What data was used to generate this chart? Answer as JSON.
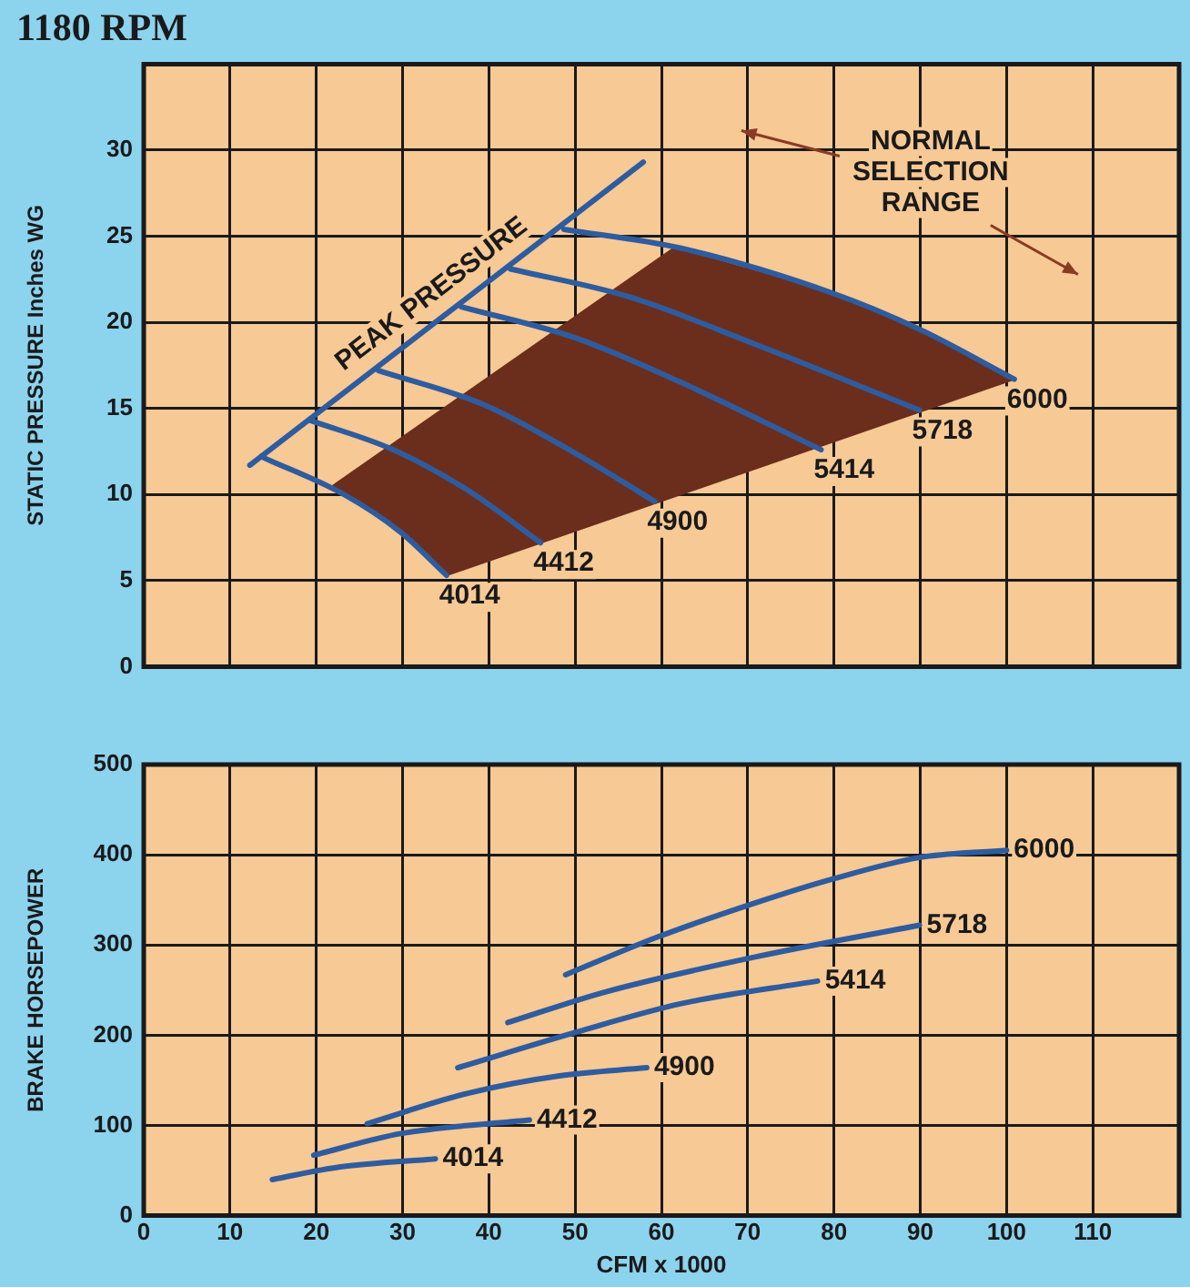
{
  "chart_data": [
    {
      "type": "line",
      "title": "1180 RPM",
      "ylabel": "STATIC PRESSURE Inches WG",
      "xlim": [
        0,
        120
      ],
      "xticks": [
        0,
        10,
        20,
        30,
        40,
        50,
        60,
        70,
        80,
        90,
        100,
        110
      ],
      "ylim": [
        0,
        35
      ],
      "yticks": [
        0,
        5,
        10,
        15,
        20,
        25,
        30
      ],
      "grid": true,
      "tick_labels": "y",
      "annotations": [
        "NORMAL SELECTION RANGE"
      ],
      "series": [
        {
          "type": "area",
          "color": "#6b2e1c",
          "x": [
            21.9,
            61.4,
            79.8,
            89.9,
            100.9,
            35.1,
            29.8,
            21.9
          ],
          "values": [
            10.5,
            24.3,
            21.7,
            19.6,
            16.7,
            5.3,
            7.8,
            10.5
          ]
        },
        {
          "name": "PEAK PRESSURE",
          "color": "#2e5c9e",
          "x": [
            12.3,
            57.9
          ],
          "values": [
            11.7,
            29.3
          ]
        },
        {
          "name": "4014",
          "color": "#2e5c9e",
          "x": [
            13.6,
            23.2,
            29.8,
            35.1
          ],
          "values": [
            12.2,
            10,
            7.8,
            5.3
          ]
        },
        {
          "name": "4412",
          "color": "#2e5c9e",
          "x": [
            19.3,
            28.9,
            37.7,
            46
          ],
          "values": [
            14.3,
            12.6,
            10.2,
            7.2
          ]
        },
        {
          "name": "4900",
          "color": "#2e5c9e",
          "x": [
            27.2,
            39.5,
            50,
            59.2
          ],
          "values": [
            17.2,
            15.2,
            12.4,
            9.6
          ]
        },
        {
          "name": "5414",
          "color": "#2e5c9e",
          "x": [
            36.8,
            50,
            62.3,
            78.5
          ],
          "values": [
            20.9,
            19.1,
            16.5,
            12.6
          ]
        },
        {
          "name": "5718",
          "color": "#2e5c9e",
          "x": [
            42.5,
            56.1,
            71,
            89.9
          ],
          "values": [
            23.1,
            21.5,
            18.7,
            14.9
          ]
        },
        {
          "name": "6000",
          "color": "#2e5c9e",
          "x": [
            48.7,
            62.3,
            79.8,
            89.9,
            100.9
          ],
          "values": [
            25.4,
            24.3,
            21.7,
            19.6,
            16.7
          ]
        }
      ]
    },
    {
      "type": "line",
      "xlabel": "CFM x 1000",
      "ylabel": "BRAKE HORSEPOWER",
      "xlim": [
        0,
        120
      ],
      "xticks": [
        0,
        10,
        20,
        30,
        40,
        50,
        60,
        70,
        80,
        90,
        100,
        110
      ],
      "ylim": [
        0,
        500
      ],
      "yticks": [
        0,
        100,
        200,
        300,
        400,
        500
      ],
      "grid": true,
      "series": [
        {
          "name": "4014",
          "color": "#2e5c9e",
          "x": [
            14.9,
            22.8,
            33.8
          ],
          "values": [
            40,
            54,
            63
          ]
        },
        {
          "name": "4412",
          "color": "#2e5c9e",
          "x": [
            19.7,
            29.8,
            44.7
          ],
          "values": [
            67,
            91,
            106
          ]
        },
        {
          "name": "4900",
          "color": "#2e5c9e",
          "x": [
            25.9,
            37.7,
            48.2,
            58.3
          ],
          "values": [
            102,
            136,
            155,
            164
          ]
        },
        {
          "name": "5414",
          "color": "#2e5c9e",
          "x": [
            36.4,
            50,
            62.3,
            78.1
          ],
          "values": [
            164,
            203,
            235,
            260
          ]
        },
        {
          "name": "5718",
          "color": "#2e5c9e",
          "x": [
            42.2,
            53.5,
            71,
            89.9
          ],
          "values": [
            214,
            248,
            287,
            322
          ]
        },
        {
          "name": "6000",
          "color": "#2e5c9e",
          "x": [
            48.9,
            59.6,
            71,
            79.8,
            89.9,
            100
          ],
          "values": [
            267,
            309,
            347,
            373,
            397,
            405
          ]
        }
      ]
    }
  ]
}
